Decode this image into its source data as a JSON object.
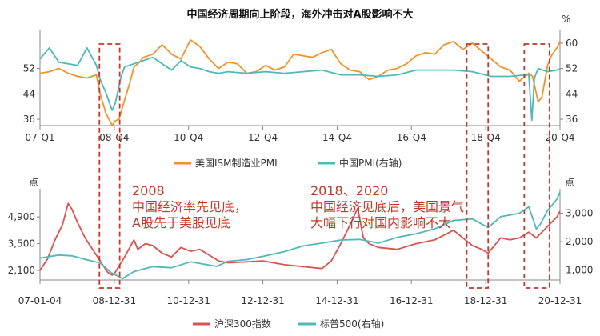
{
  "chart_data": [
    {
      "type": "line",
      "title": "中国经济周期向上阶段，海外冲击对A股影响不大",
      "unit_label": "%",
      "x_ticks": [
        "07-Q1",
        "08-Q4",
        "10-Q4",
        "12-Q4",
        "14-Q4",
        "16-Q4",
        "18-Q4",
        "20-Q4"
      ],
      "x_range": [
        2007.0,
        2020.83
      ],
      "left_axis": {
        "ticks": [
          36,
          44,
          52
        ],
        "range": [
          34,
          63
        ]
      },
      "right_axis": {
        "ticks": [
          36,
          44,
          52,
          60
        ],
        "range": [
          34,
          63
        ]
      },
      "grid": false,
      "legend_position": "bottom",
      "series": [
        {
          "name": "美国ISM制造业PMI",
          "axis": "left",
          "color": "#f0932b",
          "x": [
            2007.0,
            2007.25,
            2007.5,
            2007.75,
            2008.0,
            2008.25,
            2008.5,
            2008.6,
            2008.75,
            2008.92,
            2009.0,
            2009.1,
            2009.25,
            2009.4,
            2009.5,
            2009.65,
            2009.75,
            2010.0,
            2010.25,
            2010.5,
            2010.75,
            2011.0,
            2011.25,
            2011.5,
            2011.75,
            2012.0,
            2012.25,
            2012.5,
            2012.75,
            2013.0,
            2013.25,
            2013.5,
            2013.75,
            2014.0,
            2014.25,
            2014.5,
            2014.75,
            2015.0,
            2015.25,
            2015.5,
            2015.75,
            2016.0,
            2016.25,
            2016.5,
            2016.75,
            2017.0,
            2017.25,
            2017.5,
            2017.75,
            2018.0,
            2018.25,
            2018.5,
            2018.75,
            2019.0,
            2019.25,
            2019.5,
            2019.75,
            2020.0,
            2020.1,
            2020.25,
            2020.35,
            2020.5,
            2020.6,
            2020.75,
            2020.83
          ],
          "y": [
            50.5,
            51.0,
            52.0,
            50.5,
            49.5,
            49.0,
            50.0,
            44.0,
            38.0,
            34.0,
            35.5,
            36.0,
            42.0,
            48.0,
            52.5,
            54.0,
            55.5,
            56.5,
            59.5,
            56.5,
            55.0,
            61.0,
            59.0,
            55.0,
            52.0,
            54.0,
            53.5,
            50.5,
            51.0,
            53.0,
            51.5,
            52.5,
            56.5,
            56.0,
            55.5,
            57.0,
            58.0,
            53.5,
            51.5,
            51.0,
            48.5,
            49.5,
            51.5,
            52.0,
            53.5,
            56.0,
            57.0,
            56.5,
            59.5,
            60.5,
            58.0,
            60.0,
            57.5,
            55.0,
            52.5,
            51.5,
            48.0,
            50.5,
            49.5,
            41.5,
            43.0,
            53.0,
            56.0,
            58.5,
            60.5
          ]
        },
        {
          "name": "中国PMI(右轴)",
          "axis": "right",
          "color": "#4fb8b8",
          "x": [
            2007.0,
            2007.25,
            2007.5,
            2007.75,
            2008.0,
            2008.25,
            2008.5,
            2008.6,
            2008.75,
            2008.92,
            2009.0,
            2009.15,
            2009.25,
            2009.5,
            2009.75,
            2010.0,
            2010.25,
            2010.5,
            2010.75,
            2011.0,
            2011.25,
            2011.5,
            2011.75,
            2012.0,
            2012.5,
            2013.0,
            2013.5,
            2014.0,
            2014.5,
            2015.0,
            2015.5,
            2016.0,
            2016.5,
            2017.0,
            2017.5,
            2018.0,
            2018.5,
            2019.0,
            2019.5,
            2019.9,
            2020.0,
            2020.08,
            2020.15,
            2020.25,
            2020.5,
            2020.75,
            2020.83
          ],
          "y": [
            55.0,
            58.5,
            54.0,
            53.5,
            53.0,
            58.5,
            53.0,
            48.5,
            44.5,
            38.8,
            41.0,
            49.0,
            52.5,
            53.5,
            54.5,
            55.5,
            53.5,
            51.5,
            54.5,
            52.5,
            52.0,
            51.0,
            50.5,
            51.0,
            50.5,
            51.0,
            50.5,
            51.0,
            51.5,
            50.0,
            50.0,
            49.5,
            50.0,
            51.5,
            51.5,
            51.5,
            51.0,
            49.5,
            49.5,
            50.0,
            50.0,
            35.7,
            49.0,
            52.0,
            51.0,
            51.5,
            51.9
          ]
        }
      ]
    },
    {
      "type": "line",
      "title": "",
      "unit_label_left": "点",
      "unit_label_right": "点",
      "x_ticks": [
        "07-01-04",
        "08-12-31",
        "10-12-31",
        "12-12-31",
        "14-12-31",
        "16-12-31",
        "18-12-31",
        "20-12-31"
      ],
      "x_range": [
        2007.0,
        2020.83
      ],
      "left_axis": {
        "ticks": [
          2100,
          3500,
          4900
        ],
        "range": [
          1600,
          6200
        ]
      },
      "right_axis": {
        "ticks": [
          1000,
          2000,
          3000
        ],
        "range": [
          650,
          3750
        ]
      },
      "grid": false,
      "legend_position": "bottom",
      "series": [
        {
          "name": "沪深300指数",
          "axis": "left",
          "color": "#d9534f",
          "x": [
            2007.0,
            2007.2,
            2007.4,
            2007.6,
            2007.75,
            2007.85,
            2008.0,
            2008.2,
            2008.4,
            2008.6,
            2008.8,
            2008.92,
            2009.0,
            2009.25,
            2009.5,
            2009.6,
            2009.8,
            2010.0,
            2010.25,
            2010.5,
            2010.75,
            2011.0,
            2011.25,
            2011.5,
            2011.75,
            2012.0,
            2012.5,
            2012.92,
            2013.5,
            2014.0,
            2014.5,
            2014.75,
            2015.0,
            2015.25,
            2015.45,
            2015.6,
            2015.75,
            2016.0,
            2016.5,
            2017.0,
            2017.5,
            2018.0,
            2018.25,
            2018.5,
            2018.75,
            2018.92,
            2019.25,
            2019.5,
            2019.75,
            2020.0,
            2020.2,
            2020.5,
            2020.75,
            2020.83
          ],
          "y": [
            2100,
            2700,
            3700,
            4500,
            5600,
            5300,
            4600,
            3800,
            3200,
            2600,
            2000,
            1850,
            2000,
            2800,
            3700,
            3200,
            3500,
            3400,
            3000,
            2800,
            3300,
            3100,
            3200,
            2900,
            2600,
            2500,
            2550,
            2600,
            2400,
            2300,
            2200,
            2600,
            3500,
            4500,
            5350,
            3800,
            3500,
            3300,
            3200,
            3500,
            3700,
            4200,
            3800,
            3400,
            3200,
            3000,
            3800,
            3700,
            3800,
            4100,
            3800,
            4400,
            4900,
            5200
          ]
        },
        {
          "name": "标普500(右轴)",
          "axis": "right",
          "color": "#4fb8b8",
          "x": [
            2007.0,
            2007.5,
            2007.85,
            2008.25,
            2008.6,
            2008.9,
            2009.2,
            2009.5,
            2010.0,
            2010.5,
            2011.0,
            2011.7,
            2012.0,
            2012.5,
            2013.0,
            2013.5,
            2014.0,
            2014.5,
            2015.0,
            2015.5,
            2016.0,
            2016.5,
            2017.0,
            2017.5,
            2018.0,
            2018.5,
            2018.92,
            2019.25,
            2019.75,
            2020.0,
            2020.2,
            2020.3,
            2020.5,
            2020.75,
            2020.83
          ],
          "y": [
            1420,
            1530,
            1500,
            1360,
            1250,
            900,
            700,
            950,
            1120,
            1080,
            1290,
            1130,
            1310,
            1370,
            1500,
            1650,
            1850,
            1950,
            2060,
            2080,
            1950,
            2150,
            2280,
            2450,
            2750,
            2800,
            2500,
            2880,
            3000,
            3230,
            2450,
            2600,
            3100,
            3500,
            3756
          ]
        }
      ]
    }
  ],
  "annotations": [
    {
      "lines": [
        "2008",
        "中国经济率先见底，",
        "A股先于美股见底"
      ]
    },
    {
      "lines": [
        "2018、2020",
        "中国经济见底后，美国景气",
        "大幅下行对国内影响不大"
      ]
    }
  ],
  "highlight_periods": [
    {
      "label": "2008",
      "x_range": [
        2008.58,
        2009.12
      ]
    },
    {
      "label": "2018",
      "x_range": [
        2018.35,
        2018.92
      ]
    },
    {
      "label": "2020",
      "x_range": [
        2019.88,
        2020.55
      ]
    }
  ]
}
